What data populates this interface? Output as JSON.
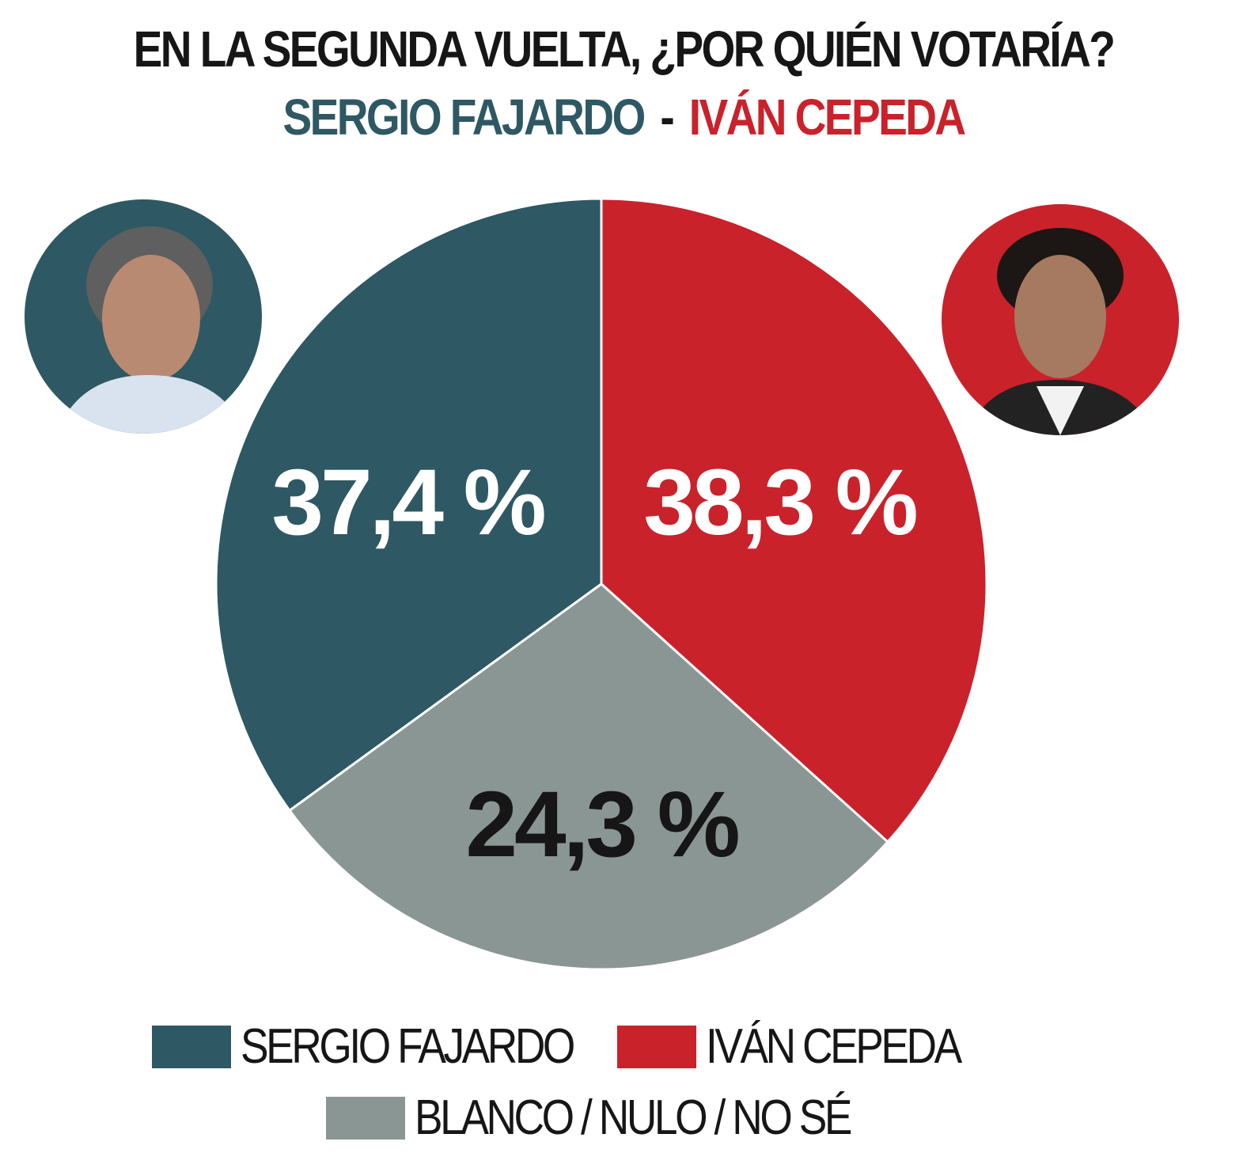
{
  "header": {
    "title": "EN LA SEGUNDA VUELTA, ¿POR QUIÉN VOTARÍA?",
    "subtitle_a": "SERGIO FAJARDO",
    "subtitle_dash": "-",
    "subtitle_b": "IVÁN CEPEDA"
  },
  "colors": {
    "fajardo": "#2e5863",
    "cepeda": "#c9222b",
    "blanco": "#8a9694",
    "text": "#161616"
  },
  "portraits": [
    {
      "name": "Sergio Fajardo",
      "icon": "portrait-photo",
      "bg": "#2e5863"
    },
    {
      "name": "Iván Cepeda",
      "icon": "portrait-photo",
      "bg": "#c9222b"
    }
  ],
  "chart_data": {
    "type": "pie",
    "title": "EN LA SEGUNDA VUELTA, ¿POR QUIÉN VOTARÍA?",
    "subtitle": "SERGIO FAJARDO - IVÁN CEPEDA",
    "categories": [
      "SERGIO FAJARDO",
      "IVÁN CEPEDA",
      "BLANCO / NULO / NO SÉ"
    ],
    "values": [
      37.4,
      38.3,
      24.3
    ],
    "labels": [
      "37,4 %",
      "38,3 %",
      "24,3 %"
    ],
    "colors": [
      "#2e5863",
      "#c9222b",
      "#8a9694"
    ],
    "legend_position": "bottom"
  },
  "legend": {
    "items": [
      {
        "label": "SERGIO FAJARDO",
        "color": "#2e5863"
      },
      {
        "label": "IVÁN CEPEDA",
        "color": "#c9222b"
      },
      {
        "label": "BLANCO / NULO / NO SÉ",
        "color": "#8a9694"
      }
    ]
  }
}
